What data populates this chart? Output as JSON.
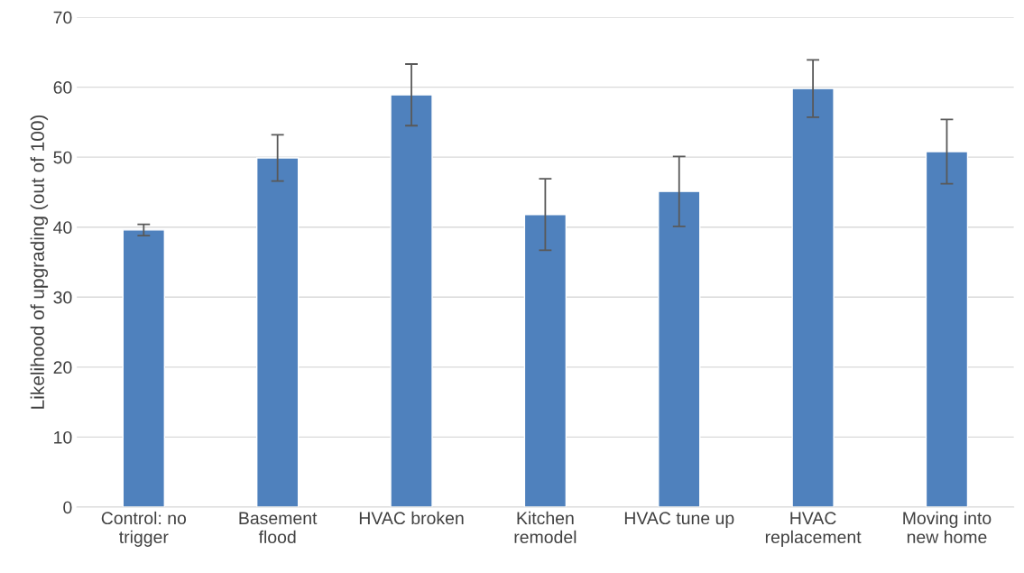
{
  "chart_data": {
    "type": "bar",
    "ylabel": "Likelihood of upgrading (out of 100)",
    "categories": [
      "Control: no\ntrigger",
      "Basement\nflood",
      "HVAC broken",
      "Kitchen\nremodel",
      "HVAC tune up",
      "HVAC\nreplacement",
      "Moving into\nnew home"
    ],
    "values": [
      39.6,
      49.9,
      58.9,
      41.8,
      45.1,
      59.8,
      50.8
    ],
    "errors": [
      0.8,
      3.3,
      4.4,
      5.1,
      5.0,
      4.1,
      4.6
    ],
    "color": "#4f81bd",
    "ylim": [
      0,
      70
    ],
    "yticks": [
      0,
      10,
      20,
      30,
      40,
      50,
      60,
      70
    ],
    "grid": "y",
    "legend": false
  }
}
